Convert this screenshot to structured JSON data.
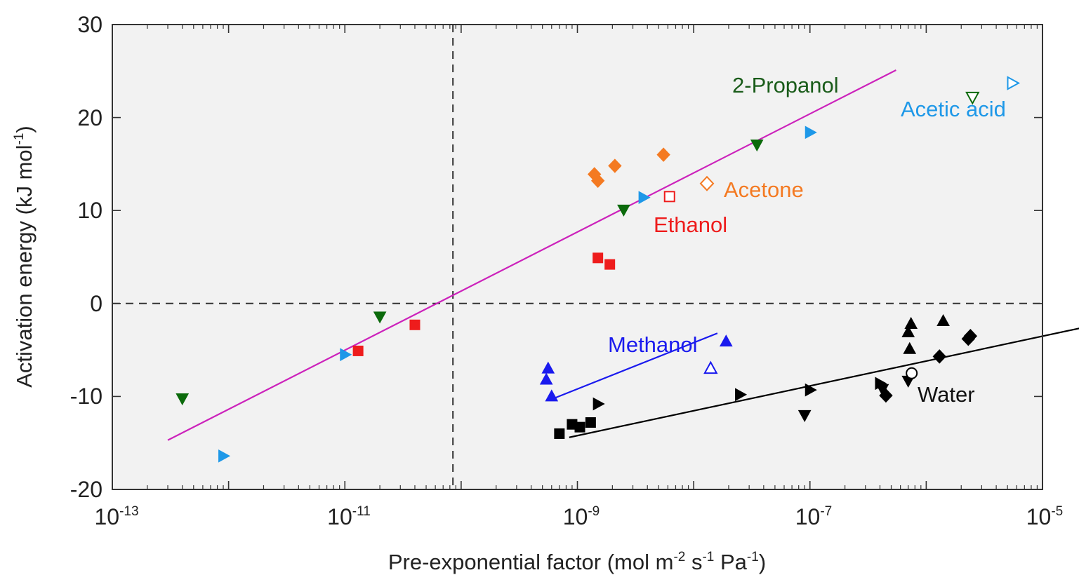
{
  "chart_data": {
    "type": "scatter",
    "xscale": "log",
    "xlim": [
      1e-13,
      1e-05
    ],
    "ylim": [
      -20,
      30
    ],
    "xlabel": "Pre-exponential factor (mol m-2 s-1 Pa-1)",
    "xlabel_parts": {
      "a": "Pre-exponential factor (mol m",
      "b": "-2",
      "c": " s",
      "d": "-1",
      "e": " Pa",
      "f": "-1",
      "g": ")"
    },
    "ylabel": "Activation energy (kJ mol-1)",
    "ylabel_parts": {
      "a": "Activation energy (kJ mol",
      "b": "-1",
      "c": ")"
    },
    "x_ticks": [
      {
        "base": "10",
        "exp": "-13",
        "value": 1e-13
      },
      {
        "base": "10",
        "exp": "-11",
        "value": 1e-11
      },
      {
        "base": "10",
        "exp": "-9",
        "value": 1e-09
      },
      {
        "base": "10",
        "exp": "-7",
        "value": 1e-07
      },
      {
        "base": "10",
        "exp": "-5",
        "value": 1e-05
      }
    ],
    "y_ticks": [
      "30",
      "20",
      "10",
      "0",
      "-10",
      "-20"
    ],
    "reference_lines": [
      {
        "orientation": "vertical",
        "x": 8.5e-11,
        "style": "dashed"
      },
      {
        "orientation": "horizontal",
        "y": 0,
        "style": "dashed"
      }
    ],
    "fit_lines": [
      {
        "color": "#cc22bb",
        "x": [
          3e-13,
          5.5e-07
        ],
        "y": [
          -14.7,
          25.1
        ]
      },
      {
        "color": "#1a1aee",
        "x": [
          6e-10,
          1.6e-08
        ],
        "y": [
          -10.3,
          -3.2
        ]
      },
      {
        "color": "#000000",
        "x": [
          8.5e-10,
          3.4e-05
        ],
        "y": [
          -14.4,
          -2.1
        ]
      }
    ],
    "series": [
      {
        "name": "2-Propanol",
        "color": "#0b6a0b",
        "marker": "triangle-down",
        "label_color": "#1a5c1a",
        "points": [
          [
            4e-13,
            -10.2
          ],
          [
            2e-11,
            -1.4
          ],
          [
            2.5e-09,
            10.1
          ],
          [
            3.5e-08,
            17.1
          ]
        ],
        "open_points": [
          [
            2.5e-06,
            22.2
          ]
        ]
      },
      {
        "name": "Acetic acid",
        "color": "#1e98e8",
        "marker": "triangle-right",
        "label_color": "#1e98e8",
        "points": [
          [
            9e-13,
            -16.4
          ],
          [
            1e-11,
            -5.5
          ],
          [
            3.7e-09,
            11.4
          ],
          [
            1e-07,
            18.4
          ]
        ],
        "open_points": [
          [
            5.5e-06,
            23.7
          ]
        ]
      },
      {
        "name": "Acetone",
        "color": "#f47a22",
        "marker": "diamond",
        "label_color": "#f47a22",
        "points": [
          [
            1.4e-09,
            13.9
          ],
          [
            1.5e-09,
            13.2
          ],
          [
            2.1e-09,
            14.8
          ],
          [
            5.5e-09,
            16.0
          ]
        ],
        "open_points": [
          [
            1.3e-08,
            12.9
          ]
        ]
      },
      {
        "name": "Ethanol",
        "color": "#ee1c1c",
        "marker": "square",
        "label_color": "#ee1c1c",
        "points": [
          [
            1.3e-11,
            -5.1
          ],
          [
            4e-11,
            -2.3
          ],
          [
            1.5e-09,
            4.9
          ],
          [
            1.9e-09,
            4.2
          ]
        ],
        "open_points": [
          [
            6.2e-09,
            11.5
          ]
        ]
      },
      {
        "name": "Methanol",
        "color": "#1a1aee",
        "marker": "triangle-up",
        "label_color": "#1a1aee",
        "points": [
          [
            5.6e-10,
            -7.0
          ],
          [
            5.4e-10,
            -8.2
          ],
          [
            6e-10,
            -10.0
          ],
          [
            1.9e-08,
            -4.1
          ]
        ],
        "open_points": [
          [
            1.4e-08,
            -7.0
          ]
        ]
      },
      {
        "name": "Water",
        "color": "#000000",
        "marker": "mixed",
        "label_color": "#111111",
        "points_square": [
          [
            7e-10,
            -14.0
          ],
          [
            9e-10,
            -13.0
          ],
          [
            1.05e-09,
            -13.3
          ],
          [
            1.3e-09,
            -12.8
          ]
        ],
        "points_right": [
          [
            1.5e-09,
            -10.8
          ],
          [
            2.5e-08,
            -9.8
          ],
          [
            1e-07,
            -9.3
          ],
          [
            4e-07,
            -8.6
          ]
        ],
        "points_down": [
          [
            9e-08,
            -12.0
          ],
          [
            4.2e-07,
            -9.2
          ],
          [
            7e-07,
            -8.3
          ]
        ],
        "points_up": [
          [
            7e-07,
            -3.1
          ],
          [
            7.2e-07,
            -4.9
          ],
          [
            7.4e-07,
            -2.2
          ],
          [
            1.4e-06,
            -1.9
          ]
        ],
        "points_diamond": [
          [
            4.5e-07,
            -9.9
          ],
          [
            1.3e-06,
            -5.7
          ],
          [
            2.3e-06,
            -3.8
          ],
          [
            2.4e-06,
            -3.5
          ]
        ],
        "open_points": [
          [
            7.5e-07,
            -7.5
          ]
        ]
      }
    ]
  }
}
